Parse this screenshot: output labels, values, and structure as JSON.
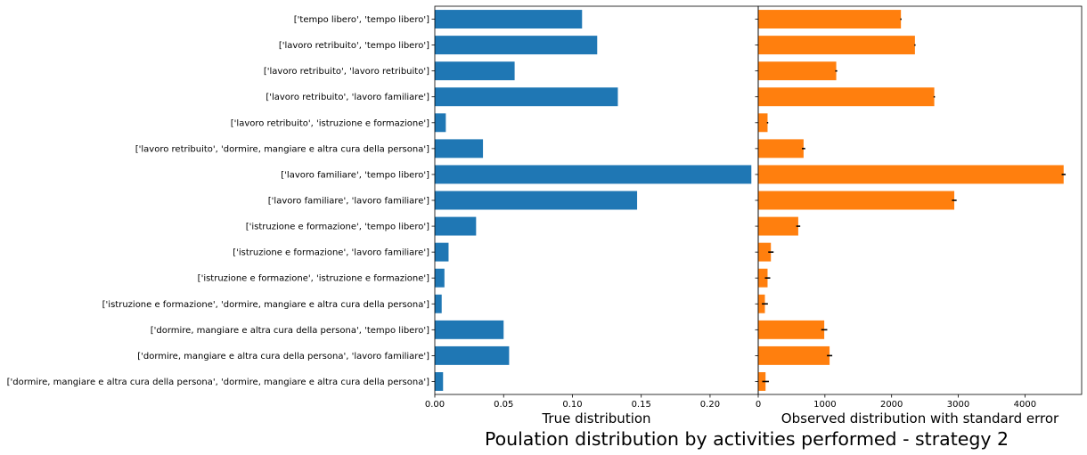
{
  "figure": {
    "suptitle": "Poulation distribution by activities performed - strategy 2"
  },
  "chart_data": [
    {
      "type": "bar",
      "orientation": "horizontal",
      "color": "#1f77b4",
      "xlabel": "True distribution",
      "xlim": [
        0,
        0.235
      ],
      "xticks": [
        0,
        0.05,
        0.1,
        0.15,
        0.2
      ],
      "xtick_labels": [
        "0.00",
        "0.05",
        "0.10",
        "0.15",
        "0.20"
      ],
      "categories": [
        "['tempo libero', 'tempo libero']",
        "['lavoro retribuito', 'tempo libero']",
        "['lavoro retribuito', 'lavoro retribuito']",
        "['lavoro retribuito', 'lavoro familiare']",
        "['lavoro retribuito', 'istruzione e formazione']",
        "['lavoro retribuito', 'dormire, mangiare e altra cura della persona']",
        "['lavoro familiare', 'tempo libero']",
        "['lavoro familiare', 'lavoro familiare']",
        "['istruzione e formazione', 'tempo libero']",
        "['istruzione e formazione', 'lavoro familiare']",
        "['istruzione e formazione', 'istruzione e formazione']",
        "['istruzione e formazione', 'dormire, mangiare e altra cura della persona']",
        "['dormire, mangiare e altra cura della persona', 'tempo libero']",
        "['dormire, mangiare e altra cura della persona', 'lavoro familiare']",
        "['dormire, mangiare e altra cura della persona', 'dormire, mangiare e altra cura della persona']"
      ],
      "values": [
        0.107,
        0.118,
        0.058,
        0.133,
        0.008,
        0.035,
        0.23,
        0.147,
        0.03,
        0.01,
        0.007,
        0.005,
        0.05,
        0.054,
        0.006
      ]
    },
    {
      "type": "bar",
      "orientation": "horizontal",
      "color": "#ff7f0e",
      "xlabel": "Observed distribution with standard error",
      "xlim": [
        0,
        4850
      ],
      "xticks": [
        0,
        1000,
        2000,
        3000,
        4000
      ],
      "xtick_labels": [
        "0",
        "1000",
        "2000",
        "3000",
        "4000"
      ],
      "values": [
        2140,
        2350,
        1170,
        2640,
        140,
        680,
        4580,
        2940,
        600,
        190,
        140,
        100,
        990,
        1070,
        110
      ],
      "errors": [
        10,
        10,
        15,
        10,
        10,
        25,
        30,
        35,
        30,
        40,
        40,
        45,
        45,
        40,
        50
      ]
    }
  ]
}
